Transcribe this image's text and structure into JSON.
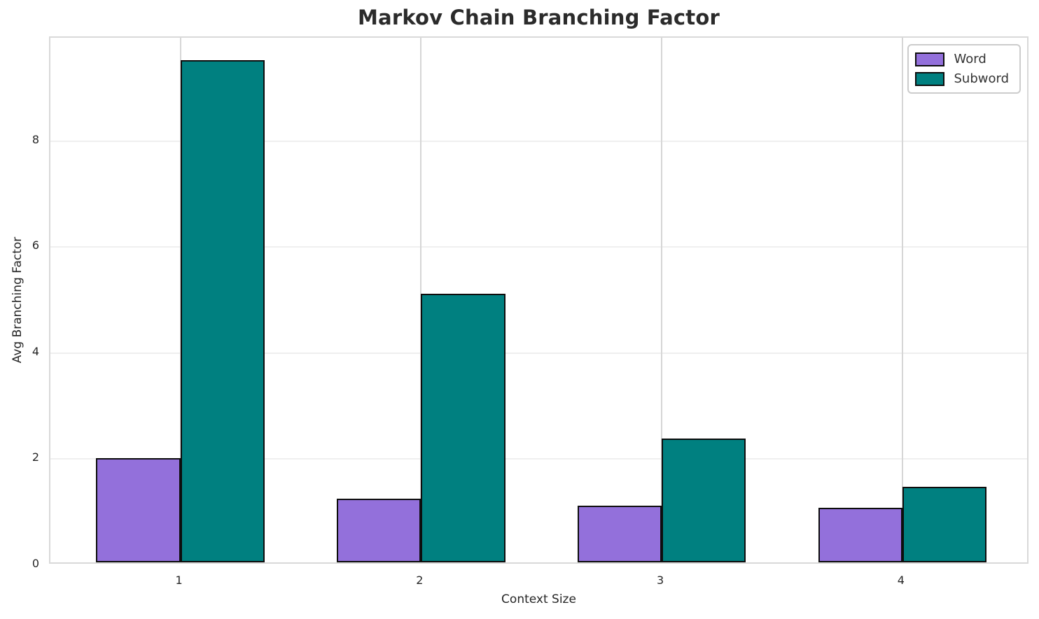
{
  "chart_data": {
    "type": "bar",
    "title": "Markov Chain Branching Factor",
    "xlabel": "Context Size",
    "ylabel": "Avg Branching Factor",
    "categories": [
      "1",
      "2",
      "3",
      "4"
    ],
    "series": [
      {
        "name": "Word",
        "color": "#9370DB",
        "values": [
          1.97,
          1.2,
          1.07,
          1.03
        ]
      },
      {
        "name": "Subword",
        "color": "#008080",
        "values": [
          9.47,
          5.07,
          2.34,
          1.43
        ]
      }
    ],
    "bar_width": 0.35,
    "bar_edge_color": "#0d0d0d",
    "xlim": [
      0.46,
      4.53
    ],
    "ylim": [
      0,
      9.95
    ],
    "yticks": [
      0,
      2,
      4,
      6,
      8
    ],
    "grid": true,
    "legend_position": "upper right",
    "colors": {
      "title_text": "#2b2b2b",
      "axis_text": "#262626",
      "spine": "#d9d9d9",
      "grid_horizontal": "#efefef",
      "grid_vertical": "#d6d6d6",
      "background": "#ffffff",
      "legend_border": "#cccccc"
    }
  }
}
